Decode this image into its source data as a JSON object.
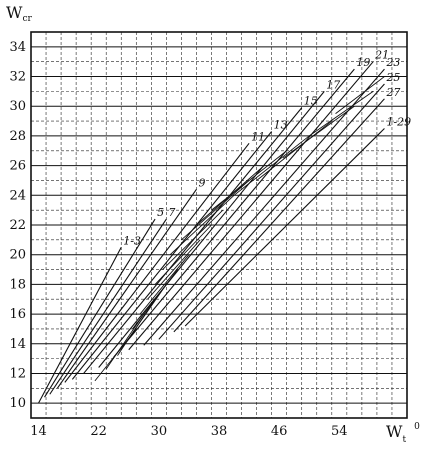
{
  "chart_data": {
    "type": "line",
    "ylabel": "W",
    "ylabel_sub": "cr",
    "xlabel": "W",
    "xlabel_sub": "t",
    "xlabel_sup": "0",
    "xlim": [
      13,
      63
    ],
    "ylim": [
      9,
      35
    ],
    "xticks": [
      14,
      22,
      30,
      38,
      46,
      54
    ],
    "yticks": [
      10,
      12,
      14,
      16,
      18,
      20,
      22,
      24,
      26,
      28,
      30,
      32,
      34
    ],
    "grid": true,
    "legend": "none",
    "series": [
      {
        "name": "1-3",
        "x": [
          14,
          25
        ],
        "y": [
          10,
          20.5
        ]
      },
      {
        "name": "5",
        "x": [
          14.8,
          29.5
        ],
        "y": [
          10.4,
          22.4
        ]
      },
      {
        "name": "7",
        "x": [
          15.5,
          31
        ],
        "y": [
          10.6,
          22.4
        ]
      },
      {
        "name": "9",
        "x": [
          16.5,
          35
        ],
        "y": [
          11,
          24.4
        ]
      },
      {
        "name": "11",
        "x": [
          17.5,
          42
        ],
        "y": [
          11.4,
          27.5
        ]
      },
      {
        "name": "13",
        "x": [
          18.5,
          45
        ],
        "y": [
          11.6,
          28.3
        ]
      },
      {
        "name": "15",
        "x": [
          20,
          49
        ],
        "y": [
          12,
          29.9
        ]
      },
      {
        "name": "17",
        "x": [
          22,
          52
        ],
        "y": [
          12.4,
          31
        ]
      },
      {
        "name": "19",
        "x": [
          24,
          56
        ],
        "y": [
          13.1,
          32.5
        ]
      },
      {
        "name": "21",
        "x": [
          26,
          58.5
        ],
        "y": [
          13.6,
          33
        ]
      },
      {
        "name": "23",
        "x": [
          28,
          60
        ],
        "y": [
          13.9,
          32.5
        ]
      },
      {
        "name": "25",
        "x": [
          30,
          60
        ],
        "y": [
          14.3,
          31.5
        ]
      },
      {
        "name": "27",
        "x": [
          32,
          60
        ],
        "y": [
          14.8,
          30.5
        ]
      },
      {
        "name": "1-29",
        "x": [
          33.5,
          60
        ],
        "y": [
          15.2,
          28.5
        ]
      }
    ],
    "cross_lines": [
      {
        "x": [
          21.5,
          27
        ],
        "y": [
          11.5,
          15
        ]
      },
      {
        "x": [
          23,
          28
        ],
        "y": [
          12.3,
          16
        ]
      },
      {
        "x": [
          24.5,
          29.5
        ],
        "y": [
          13.2,
          17
        ]
      },
      {
        "x": [
          25.5,
          31
        ],
        "y": [
          14,
          18
        ]
      },
      {
        "x": [
          26.5,
          32.5
        ],
        "y": [
          15,
          19
        ]
      },
      {
        "x": [
          27.5,
          34
        ],
        "y": [
          16,
          20
        ]
      },
      {
        "x": [
          28.5,
          35.5
        ],
        "y": [
          17,
          21
        ]
      },
      {
        "x": [
          29.5,
          37
        ],
        "y": [
          18,
          22
        ]
      },
      {
        "x": [
          30.5,
          38.5
        ],
        "y": [
          19,
          23
        ]
      },
      {
        "x": [
          31.5,
          40
        ],
        "y": [
          20,
          24
        ]
      },
      {
        "x": [
          33,
          42
        ],
        "y": [
          21,
          25
        ]
      },
      {
        "x": [
          35,
          44
        ],
        "y": [
          22,
          26
        ]
      },
      {
        "x": [
          37,
          47
        ],
        "y": [
          23,
          27
        ]
      },
      {
        "x": [
          40,
          50
        ],
        "y": [
          24,
          28
        ]
      },
      {
        "x": [
          43,
          53
        ],
        "y": [
          25,
          29
        ]
      },
      {
        "x": [
          46.5,
          56
        ],
        "y": [
          26.5,
          30
        ]
      },
      {
        "x": [
          50,
          58.5
        ],
        "y": [
          28,
          31
        ]
      },
      {
        "x": [
          53.5,
          60
        ],
        "y": [
          29.5,
          32
        ]
      }
    ]
  }
}
